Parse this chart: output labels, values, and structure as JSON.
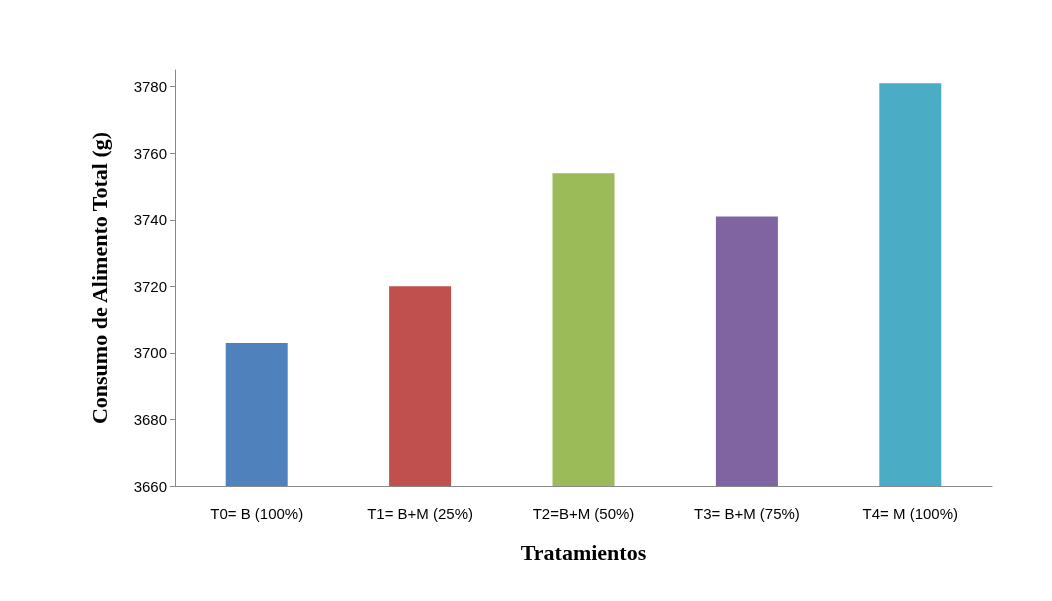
{
  "chart_data": {
    "type": "bar",
    "xlabel": "Tratamientos",
    "ylabel": "Consumo de Alimento Total (g)",
    "categories": [
      "T0= B (100%)",
      "T1= B+M (25%)",
      "T2=B+M (50%)",
      "T3= B+M (75%)",
      "T4= M (100%)"
    ],
    "values": [
      3703,
      3720,
      3754,
      3741,
      3781
    ],
    "colors": [
      "#4f81bd",
      "#c0504d",
      "#9bbb59",
      "#8064a2",
      "#4bacc6"
    ],
    "ylim": [
      3660,
      3785
    ],
    "yticks": [
      3660,
      3680,
      3700,
      3720,
      3740,
      3760,
      3780
    ],
    "grid": false
  }
}
